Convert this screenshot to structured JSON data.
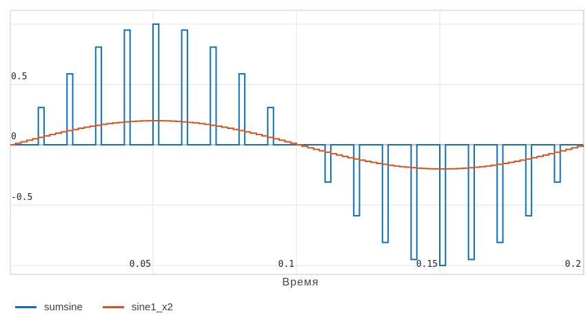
{
  "chart_data": {
    "type": "line",
    "title": "",
    "xlabel": "Время",
    "ylabel": "",
    "x_range": [
      0,
      0.2
    ],
    "y_range": [
      -1.1,
      1.15
    ],
    "grid": true,
    "legend_position": "bottom-left",
    "x_ticks": [
      {
        "value": 0.05,
        "label": "0.05"
      },
      {
        "value": 0.1,
        "label": "0.1"
      },
      {
        "value": 0.15,
        "label": "0.15"
      },
      {
        "value": 0.2,
        "label": "0.2"
      }
    ],
    "y_ticks": [
      {
        "value": 1,
        "label": ""
      },
      {
        "value": 0.5,
        "label": "0.5"
      },
      {
        "value": 0,
        "label": "0"
      },
      {
        "value": -0.5,
        "label": "-0.5"
      },
      {
        "value": -1,
        "label": ""
      }
    ],
    "series": [
      {
        "name": "sumsine",
        "color": "#0b6fba",
        "style": "pulse-train",
        "baseline": 0,
        "pulse_period": 0.01,
        "pulse_width": 0.002,
        "points": [
          {
            "t": 0.01,
            "v": 0.309
          },
          {
            "t": 0.02,
            "v": 0.588
          },
          {
            "t": 0.03,
            "v": 0.809
          },
          {
            "t": 0.04,
            "v": 0.951
          },
          {
            "t": 0.05,
            "v": 1.0
          },
          {
            "t": 0.06,
            "v": 0.951
          },
          {
            "t": 0.07,
            "v": 0.809
          },
          {
            "t": 0.08,
            "v": 0.588
          },
          {
            "t": 0.09,
            "v": 0.309
          },
          {
            "t": 0.1,
            "v": 0.0
          },
          {
            "t": 0.11,
            "v": -0.309
          },
          {
            "t": 0.12,
            "v": -0.588
          },
          {
            "t": 0.13,
            "v": -0.809
          },
          {
            "t": 0.14,
            "v": -0.951
          },
          {
            "t": 0.15,
            "v": -1.0
          },
          {
            "t": 0.16,
            "v": -0.951
          },
          {
            "t": 0.17,
            "v": -0.809
          },
          {
            "t": 0.18,
            "v": -0.588
          },
          {
            "t": 0.19,
            "v": -0.309
          }
        ]
      },
      {
        "name": "sine1_x2",
        "color": "#d4531c",
        "style": "staircase-sine",
        "amplitude": 0.2,
        "period": 0.2,
        "phase": 0,
        "sample_step": 0.002
      }
    ]
  },
  "colors": {
    "background": "#ffffff",
    "grid": "#e4e4e4",
    "zero_line": "#b2b2b2",
    "border": "#c9c9c9",
    "tick_text": "#23232e",
    "axis_title_text": "#474747",
    "legend_text": "#404040"
  }
}
